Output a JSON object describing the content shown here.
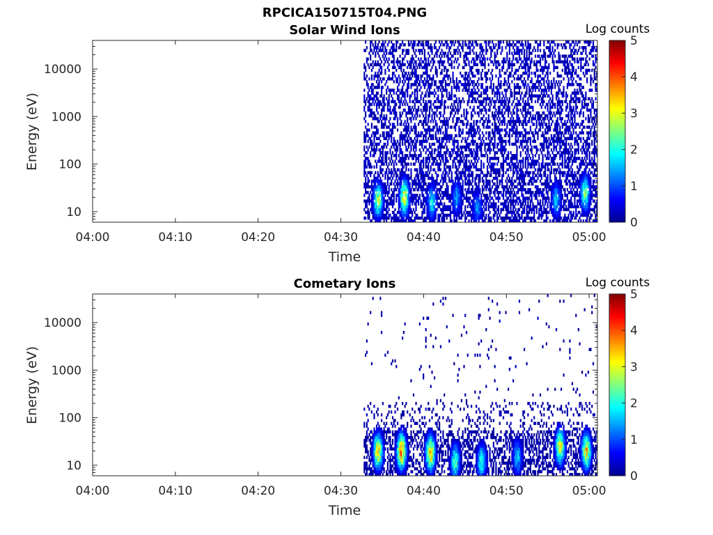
{
  "figure_title": "RPCICA150715T04.PNG",
  "chart_data": [
    {
      "type": "heatmap",
      "title": "Solar Wind Ions",
      "xlabel": "Time",
      "ylabel": "Energy (eV)",
      "y_scale": "log",
      "x_ticks": [
        "04:00",
        "04:10",
        "04:20",
        "04:30",
        "04:40",
        "04:50",
        "05:00"
      ],
      "y_ticks": [
        "10",
        "100",
        "1000",
        "10000"
      ],
      "xlim": [
        "04:00",
        "05:01"
      ],
      "ylim": [
        6,
        40000
      ],
      "data_start": "04:32:45",
      "colorbar": {
        "label": "Log counts",
        "range": [
          0,
          5
        ],
        "ticks": [
          "0",
          "1",
          "2",
          "3",
          "4",
          "5"
        ],
        "colormap": "jet"
      },
      "bursts": [
        {
          "time": "04:34:30",
          "energy_eV": 18,
          "log_counts": 2.6
        },
        {
          "time": "04:37:40",
          "energy_eV": 20,
          "log_counts": 3.0
        },
        {
          "time": "04:41:00",
          "energy_eV": 16,
          "log_counts": 1.8
        },
        {
          "time": "04:44:00",
          "energy_eV": 20,
          "log_counts": 1.4
        },
        {
          "time": "04:46:30",
          "energy_eV": 12,
          "log_counts": 1.3
        },
        {
          "time": "04:56:00",
          "energy_eV": 18,
          "log_counts": 1.6
        },
        {
          "time": "04:59:30",
          "energy_eV": 25,
          "log_counts": 2.4
        }
      ],
      "background_log_counts": 0.3
    },
    {
      "type": "heatmap",
      "title": "Cometary Ions",
      "xlabel": "Time",
      "ylabel": "Energy (eV)",
      "y_scale": "log",
      "x_ticks": [
        "04:00",
        "04:10",
        "04:20",
        "04:30",
        "04:40",
        "04:50",
        "05:00"
      ],
      "y_ticks": [
        "10",
        "100",
        "1000",
        "10000"
      ],
      "xlim": [
        "04:00",
        "05:01"
      ],
      "ylim": [
        6,
        40000
      ],
      "data_start": "04:32:45",
      "colorbar": {
        "label": "Log counts",
        "range": [
          0,
          5
        ],
        "ticks": [
          "0",
          "1",
          "2",
          "3",
          "4",
          "5"
        ],
        "colormap": "jet"
      },
      "bursts": [
        {
          "time": "04:34:30",
          "energy_eV": 20,
          "log_counts": 3.3
        },
        {
          "time": "04:37:20",
          "energy_eV": 20,
          "log_counts": 3.8
        },
        {
          "time": "04:40:50",
          "energy_eV": 18,
          "log_counts": 3.4
        },
        {
          "time": "04:43:50",
          "energy_eV": 12,
          "log_counts": 2.2
        },
        {
          "time": "04:47:00",
          "energy_eV": 12,
          "log_counts": 2.0
        },
        {
          "time": "04:51:20",
          "energy_eV": 15,
          "log_counts": 1.6
        },
        {
          "time": "04:56:30",
          "energy_eV": 25,
          "log_counts": 3.0
        },
        {
          "time": "04:59:40",
          "energy_eV": 20,
          "log_counts": 3.3
        }
      ],
      "background_log_counts": 0.2
    }
  ]
}
